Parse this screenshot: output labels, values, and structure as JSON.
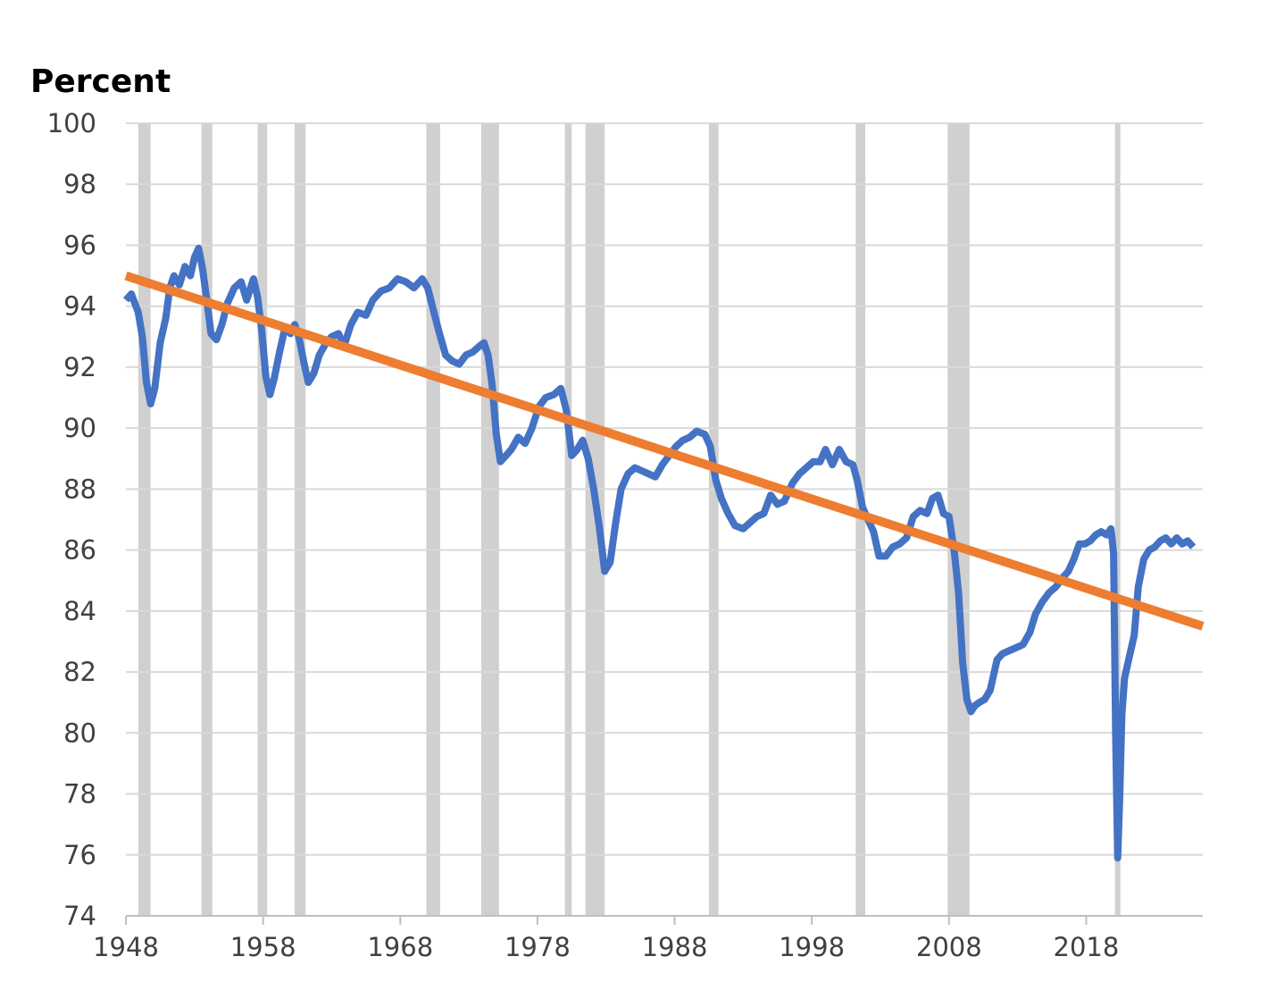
{
  "chart_data": {
    "type": "line",
    "title": "",
    "xlabel": "",
    "ylabel": "Percent",
    "xlim": [
      1948,
      2026.5
    ],
    "ylim": [
      74,
      100
    ],
    "yticks": [
      100,
      98,
      96,
      94,
      92,
      90,
      88,
      86,
      84,
      82,
      80,
      78,
      76,
      74
    ],
    "ytick_labels": [
      "100",
      "98",
      "96",
      "94",
      "92",
      "90",
      "88",
      "86",
      "84",
      "82",
      "80",
      "78",
      "76",
      "74"
    ],
    "xticks": [
      1948,
      1958,
      1968,
      1978,
      1988,
      1998,
      2008,
      2018
    ],
    "xtick_labels": [
      "1948",
      "1958",
      "1968",
      "1978",
      "1988",
      "1998",
      "2008",
      "2018"
    ],
    "grid": true,
    "legend": "none",
    "recessions": [
      [
        1948.9,
        1949.8
      ],
      [
        1953.5,
        1954.3
      ],
      [
        1957.6,
        1958.3
      ],
      [
        1960.3,
        1961.1
      ],
      [
        1969.9,
        1970.9
      ],
      [
        1973.9,
        1975.2
      ],
      [
        1980.0,
        1980.5
      ],
      [
        1981.5,
        1982.9
      ],
      [
        1990.5,
        1991.2
      ],
      [
        2001.2,
        2001.9
      ],
      [
        2007.9,
        2009.5
      ],
      [
        2020.1,
        2020.4
      ]
    ],
    "series": [
      {
        "name": "",
        "color": "#4472C4",
        "points": [
          [
            1948.0,
            94.2
          ],
          [
            1948.4,
            94.4
          ],
          [
            1948.9,
            93.8
          ],
          [
            1949.2,
            93.0
          ],
          [
            1949.5,
            91.5
          ],
          [
            1949.8,
            90.8
          ],
          [
            1950.1,
            91.3
          ],
          [
            1950.5,
            92.8
          ],
          [
            1950.9,
            93.6
          ],
          [
            1951.2,
            94.6
          ],
          [
            1951.5,
            95.0
          ],
          [
            1951.9,
            94.7
          ],
          [
            1952.3,
            95.3
          ],
          [
            1952.7,
            95.0
          ],
          [
            1953.0,
            95.6
          ],
          [
            1953.3,
            95.9
          ],
          [
            1953.6,
            95.2
          ],
          [
            1953.9,
            94.2
          ],
          [
            1954.2,
            93.1
          ],
          [
            1954.6,
            92.9
          ],
          [
            1955.0,
            93.4
          ],
          [
            1955.4,
            94.1
          ],
          [
            1955.9,
            94.6
          ],
          [
            1956.4,
            94.8
          ],
          [
            1956.8,
            94.2
          ],
          [
            1957.3,
            94.9
          ],
          [
            1957.6,
            94.3
          ],
          [
            1957.9,
            93.2
          ],
          [
            1958.2,
            91.7
          ],
          [
            1958.5,
            91.1
          ],
          [
            1958.8,
            91.6
          ],
          [
            1959.2,
            92.5
          ],
          [
            1959.6,
            93.3
          ],
          [
            1960.0,
            93.1
          ],
          [
            1960.3,
            93.4
          ],
          [
            1960.6,
            93.0
          ],
          [
            1961.0,
            92.1
          ],
          [
            1961.3,
            91.5
          ],
          [
            1961.7,
            91.8
          ],
          [
            1962.1,
            92.4
          ],
          [
            1962.6,
            92.8
          ],
          [
            1963.0,
            93.0
          ],
          [
            1963.5,
            93.1
          ],
          [
            1963.9,
            92.7
          ],
          [
            1964.4,
            93.4
          ],
          [
            1964.9,
            93.8
          ],
          [
            1965.5,
            93.7
          ],
          [
            1966.0,
            94.2
          ],
          [
            1966.6,
            94.5
          ],
          [
            1967.2,
            94.6
          ],
          [
            1967.8,
            94.9
          ],
          [
            1968.4,
            94.8
          ],
          [
            1969.0,
            94.6
          ],
          [
            1969.6,
            94.9
          ],
          [
            1970.0,
            94.6
          ],
          [
            1970.4,
            93.9
          ],
          [
            1970.8,
            93.2
          ],
          [
            1971.3,
            92.4
          ],
          [
            1971.8,
            92.2
          ],
          [
            1972.3,
            92.1
          ],
          [
            1972.8,
            92.4
          ],
          [
            1973.3,
            92.5
          ],
          [
            1973.8,
            92.7
          ],
          [
            1974.1,
            92.8
          ],
          [
            1974.4,
            92.4
          ],
          [
            1974.7,
            91.4
          ],
          [
            1975.0,
            89.8
          ],
          [
            1975.3,
            88.9
          ],
          [
            1975.7,
            89.1
          ],
          [
            1976.1,
            89.3
          ],
          [
            1976.6,
            89.7
          ],
          [
            1977.1,
            89.5
          ],
          [
            1977.6,
            90.0
          ],
          [
            1978.1,
            90.7
          ],
          [
            1978.6,
            91.0
          ],
          [
            1979.2,
            91.1
          ],
          [
            1979.7,
            91.3
          ],
          [
            1980.1,
            90.6
          ],
          [
            1980.5,
            89.1
          ],
          [
            1980.9,
            89.3
          ],
          [
            1981.3,
            89.6
          ],
          [
            1981.7,
            89.0
          ],
          [
            1982.1,
            88.0
          ],
          [
            1982.5,
            86.8
          ],
          [
            1982.9,
            85.3
          ],
          [
            1983.3,
            85.6
          ],
          [
            1983.7,
            86.9
          ],
          [
            1984.1,
            88.0
          ],
          [
            1984.6,
            88.5
          ],
          [
            1985.1,
            88.7
          ],
          [
            1985.6,
            88.6
          ],
          [
            1986.1,
            88.5
          ],
          [
            1986.6,
            88.4
          ],
          [
            1987.1,
            88.8
          ],
          [
            1987.6,
            89.1
          ],
          [
            1988.1,
            89.4
          ],
          [
            1988.6,
            89.6
          ],
          [
            1989.1,
            89.7
          ],
          [
            1989.6,
            89.9
          ],
          [
            1990.2,
            89.8
          ],
          [
            1990.6,
            89.4
          ],
          [
            1991.0,
            88.3
          ],
          [
            1991.4,
            87.7
          ],
          [
            1991.9,
            87.2
          ],
          [
            1992.4,
            86.8
          ],
          [
            1993.0,
            86.7
          ],
          [
            1993.5,
            86.9
          ],
          [
            1994.0,
            87.1
          ],
          [
            1994.5,
            87.2
          ],
          [
            1995.0,
            87.8
          ],
          [
            1995.5,
            87.5
          ],
          [
            1996.0,
            87.6
          ],
          [
            1996.6,
            88.2
          ],
          [
            1997.1,
            88.5
          ],
          [
            1997.6,
            88.7
          ],
          [
            1998.1,
            88.9
          ],
          [
            1998.6,
            88.9
          ],
          [
            1999.0,
            89.3
          ],
          [
            1999.5,
            88.8
          ],
          [
            2000.0,
            89.3
          ],
          [
            2000.5,
            88.9
          ],
          [
            2001.0,
            88.8
          ],
          [
            2001.3,
            88.3
          ],
          [
            2001.7,
            87.4
          ],
          [
            2002.1,
            87.0
          ],
          [
            2002.5,
            86.6
          ],
          [
            2002.9,
            85.8
          ],
          [
            2003.4,
            85.8
          ],
          [
            2003.9,
            86.1
          ],
          [
            2004.4,
            86.2
          ],
          [
            2004.9,
            86.4
          ],
          [
            2005.4,
            87.1
          ],
          [
            2005.9,
            87.3
          ],
          [
            2006.4,
            87.2
          ],
          [
            2006.8,
            87.7
          ],
          [
            2007.2,
            87.8
          ],
          [
            2007.6,
            87.2
          ],
          [
            2008.0,
            87.1
          ],
          [
            2008.4,
            85.9
          ],
          [
            2008.7,
            84.6
          ],
          [
            2009.0,
            82.3
          ],
          [
            2009.3,
            81.1
          ],
          [
            2009.6,
            80.7
          ],
          [
            2009.9,
            80.9
          ],
          [
            2010.2,
            81.0
          ],
          [
            2010.6,
            81.1
          ],
          [
            2011.0,
            81.4
          ],
          [
            2011.5,
            82.4
          ],
          [
            2011.9,
            82.6
          ],
          [
            2012.4,
            82.7
          ],
          [
            2012.9,
            82.8
          ],
          [
            2013.4,
            82.9
          ],
          [
            2013.9,
            83.3
          ],
          [
            2014.3,
            83.9
          ],
          [
            2014.8,
            84.3
          ],
          [
            2015.3,
            84.6
          ],
          [
            2015.8,
            84.8
          ],
          [
            2016.3,
            85.1
          ],
          [
            2016.7,
            85.3
          ],
          [
            2017.1,
            85.7
          ],
          [
            2017.5,
            86.2
          ],
          [
            2017.9,
            86.2
          ],
          [
            2018.3,
            86.3
          ],
          [
            2018.7,
            86.5
          ],
          [
            2019.1,
            86.6
          ],
          [
            2019.5,
            86.5
          ],
          [
            2019.8,
            86.7
          ],
          [
            2020.0,
            85.9
          ],
          [
            2020.15,
            80.0
          ],
          [
            2020.3,
            75.9
          ],
          [
            2020.45,
            78.0
          ],
          [
            2020.6,
            80.6
          ],
          [
            2020.8,
            81.8
          ],
          [
            2021.1,
            82.4
          ],
          [
            2021.5,
            83.2
          ],
          [
            2021.8,
            84.8
          ],
          [
            2022.2,
            85.7
          ],
          [
            2022.6,
            86.0
          ],
          [
            2023.0,
            86.1
          ],
          [
            2023.4,
            86.3
          ],
          [
            2023.8,
            86.4
          ],
          [
            2024.2,
            86.2
          ],
          [
            2024.6,
            86.4
          ],
          [
            2025.0,
            86.2
          ],
          [
            2025.4,
            86.3
          ],
          [
            2025.8,
            86.1
          ]
        ]
      },
      {
        "name": "",
        "color": "#ED7D31",
        "points": [
          [
            1948.0,
            95.0
          ],
          [
            2026.5,
            83.5
          ]
        ]
      }
    ]
  }
}
